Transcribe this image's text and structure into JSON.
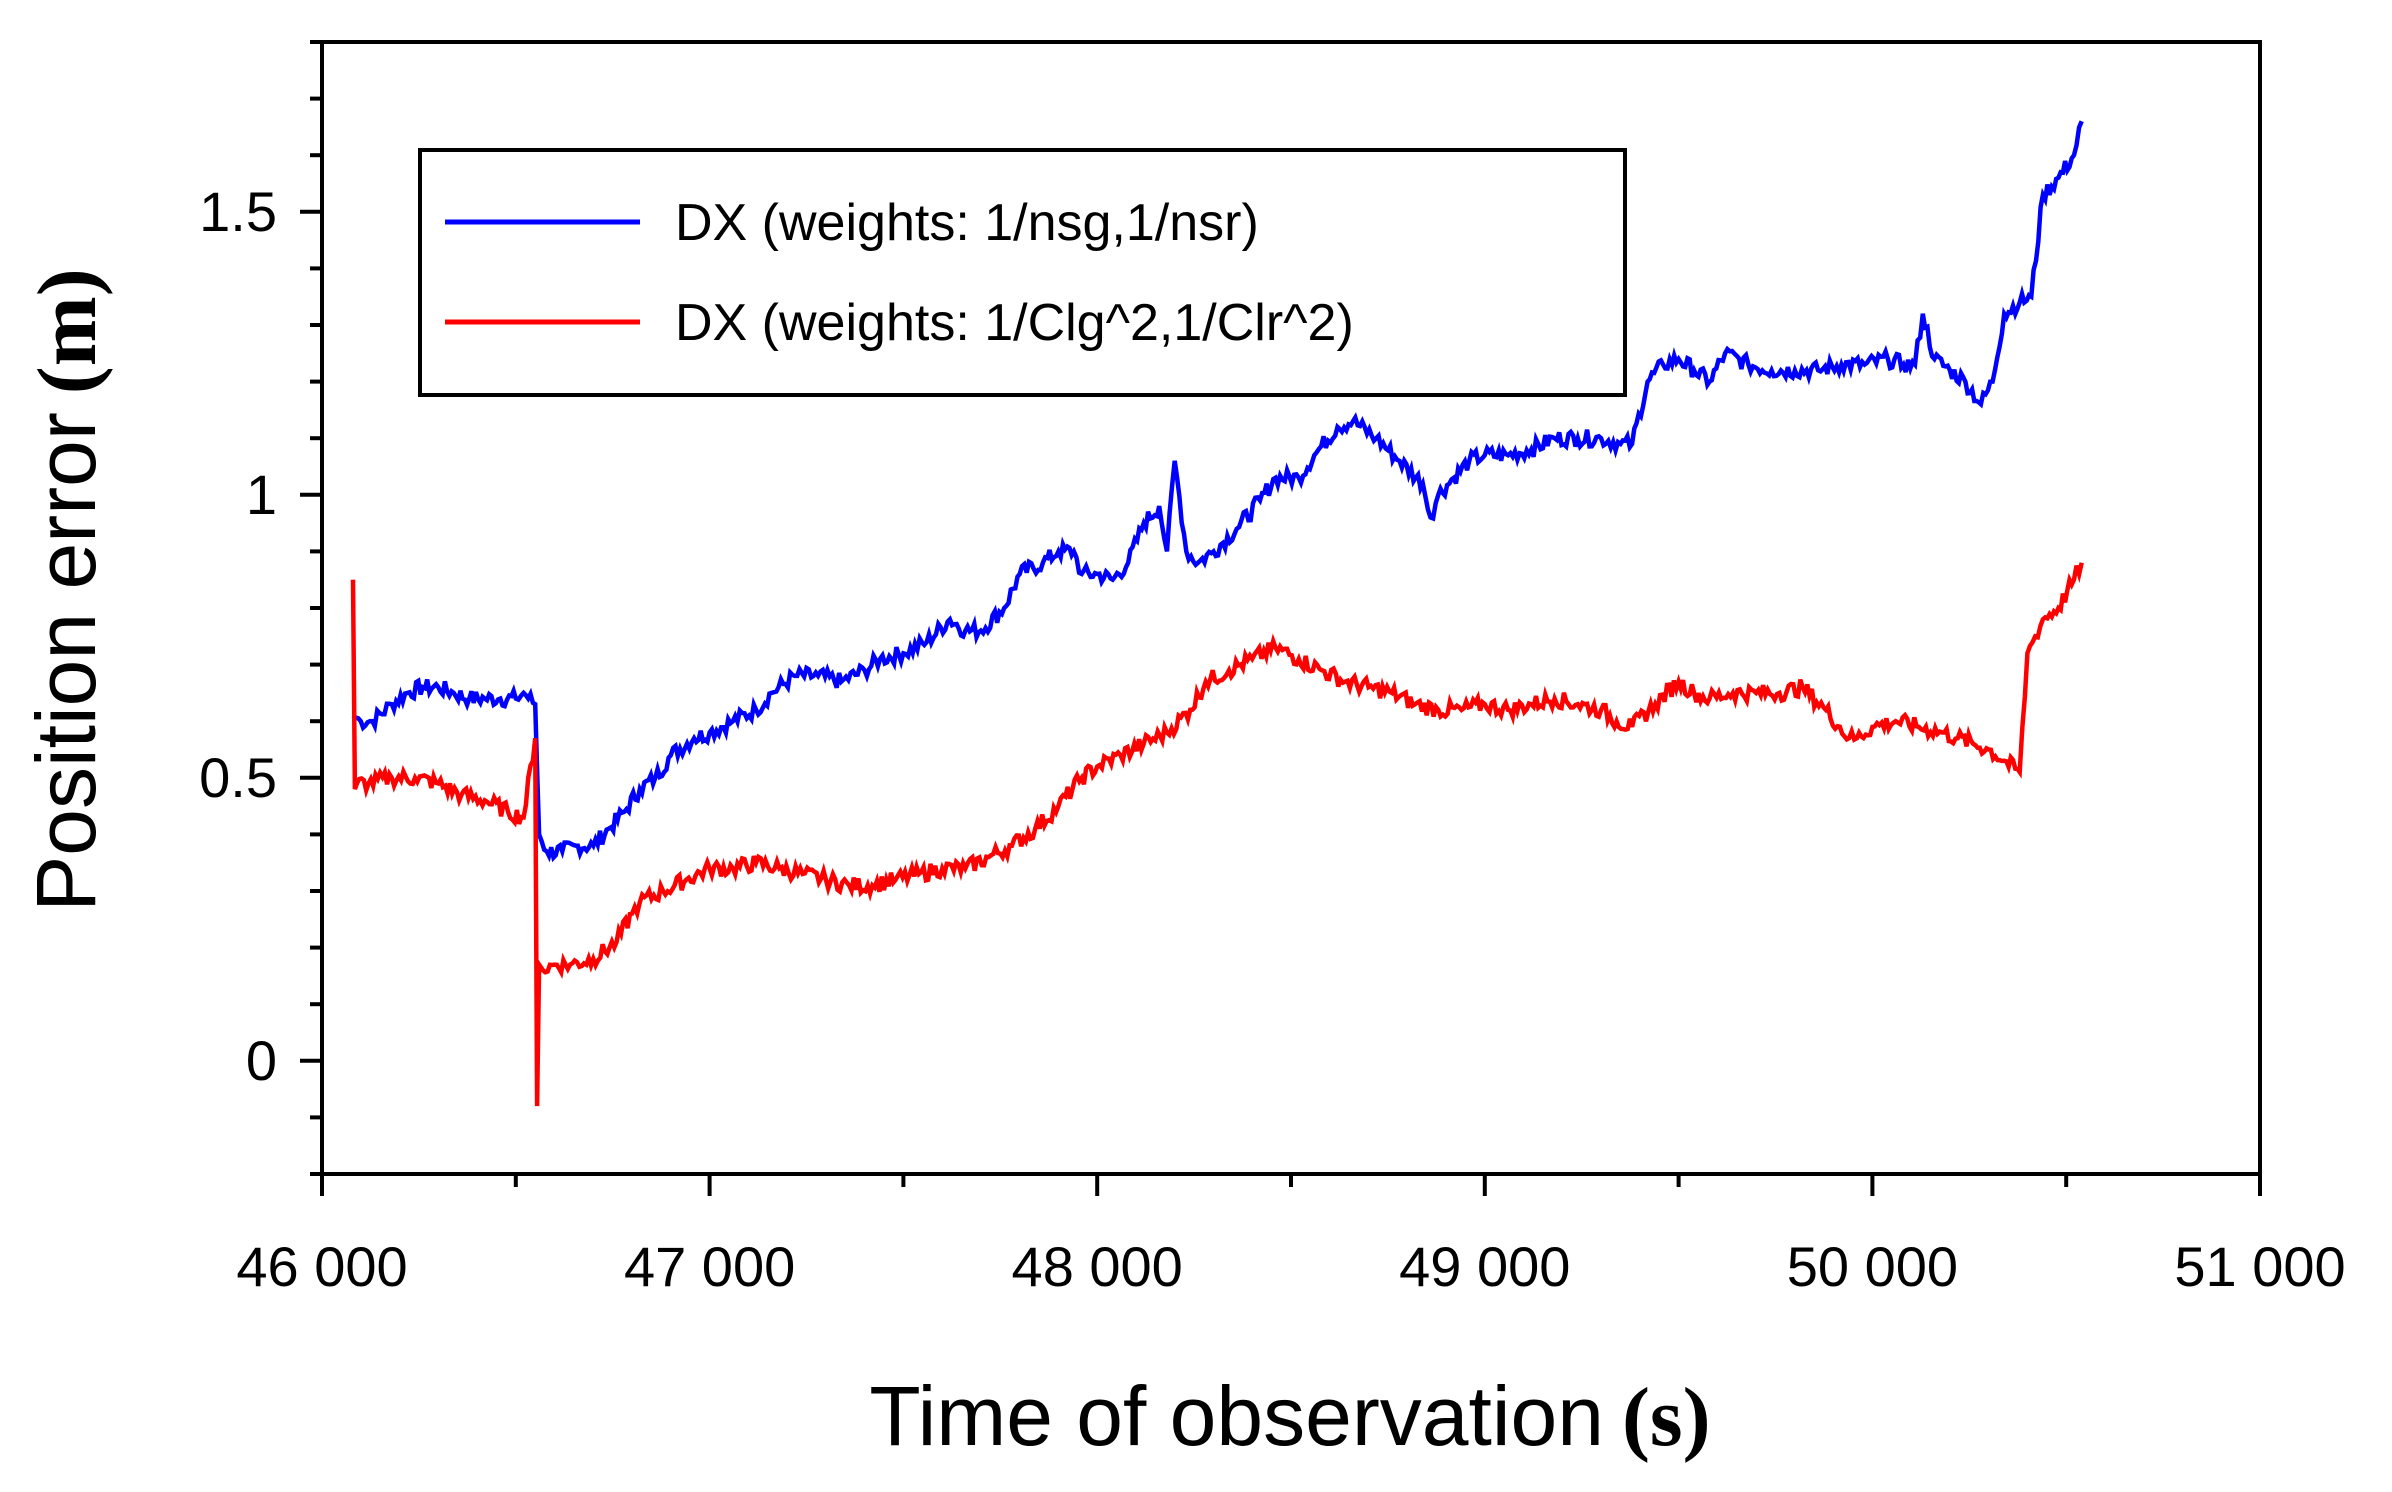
{
  "chart_data": {
    "type": "line",
    "title": "",
    "xlabel": "Time of observation",
    "xlabel_unit": "(s)",
    "ylabel": "Position error",
    "ylabel_unit": "(m)",
    "xlim": [
      46000,
      51000
    ],
    "ylim": [
      -0.2,
      1.8
    ],
    "x_ticks": [
      46000,
      47000,
      48000,
      49000,
      50000,
      51000
    ],
    "x_tick_labels": [
      "46 000",
      "47 000",
      "48 000",
      "49 000",
      "50 000",
      "51 000"
    ],
    "y_ticks": [
      0,
      0.5,
      1,
      1.5
    ],
    "y_tick_labels": [
      "0",
      "0.5",
      "1",
      "1.5"
    ],
    "legend_position": "top-left",
    "series": [
      {
        "name": "DX (weights: 1/nsg,1/nsr)",
        "color": "#0000ff",
        "x": [
          46080,
          46100,
          46130,
          46180,
          46220,
          46260,
          46300,
          46340,
          46380,
          46420,
          46460,
          46500,
          46520,
          46550,
          46560,
          46580,
          46620,
          46660,
          46700,
          46740,
          46780,
          46820,
          46860,
          46900,
          46960,
          47000,
          47060,
          47120,
          47160,
          47220,
          47280,
          47340,
          47400,
          47440,
          47500,
          47560,
          47620,
          47660,
          47700,
          47760,
          47800,
          47860,
          47900,
          47940,
          47960,
          48000,
          48040,
          48080,
          48120,
          48160,
          48180,
          48200,
          48230,
          48260,
          48300,
          48360,
          48420,
          48460,
          48520,
          48560,
          48620,
          48660,
          48720,
          48780,
          48840,
          48860,
          48880,
          48920,
          48960,
          49000,
          49060,
          49120,
          49180,
          49240,
          49300,
          49350,
          49380,
          49420,
          49460,
          49500,
          49540,
          49580,
          49620,
          49680,
          49740,
          49800,
          49860,
          49920,
          49980,
          50040,
          50080,
          50110,
          50130,
          50160,
          50200,
          50240,
          50280,
          50310,
          50340,
          50380,
          50410,
          50440,
          50480,
          50520,
          50540
        ],
        "y": [
          0.61,
          0.6,
          0.6,
          0.63,
          0.65,
          0.66,
          0.66,
          0.65,
          0.64,
          0.64,
          0.64,
          0.64,
          0.65,
          0.63,
          0.4,
          0.37,
          0.37,
          0.38,
          0.38,
          0.41,
          0.44,
          0.48,
          0.5,
          0.54,
          0.57,
          0.58,
          0.6,
          0.62,
          0.65,
          0.68,
          0.68,
          0.67,
          0.69,
          0.71,
          0.72,
          0.74,
          0.78,
          0.76,
          0.76,
          0.8,
          0.86,
          0.88,
          0.9,
          0.9,
          0.86,
          0.86,
          0.85,
          0.88,
          0.95,
          0.98,
          0.9,
          1.06,
          0.9,
          0.88,
          0.9,
          0.94,
          0.99,
          1.03,
          1.03,
          1.07,
          1.12,
          1.13,
          1.1,
          1.06,
          1.02,
          0.96,
          1.0,
          1.03,
          1.06,
          1.07,
          1.07,
          1.08,
          1.1,
          1.1,
          1.1,
          1.09,
          1.09,
          1.2,
          1.23,
          1.24,
          1.22,
          1.2,
          1.25,
          1.23,
          1.22,
          1.22,
          1.22,
          1.23,
          1.23,
          1.24,
          1.23,
          1.23,
          1.32,
          1.24,
          1.22,
          1.2,
          1.16,
          1.2,
          1.32,
          1.34,
          1.35,
          1.53,
          1.56,
          1.6,
          1.66
        ]
      },
      {
        "name": "DX (weights: 1/Clg^2,1/Clr^2)",
        "color": "#ff0000",
        "x": [
          46080,
          46085,
          46090,
          46120,
          46180,
          46240,
          46300,
          46360,
          46420,
          46480,
          46520,
          46550,
          46555,
          46560,
          46570,
          46600,
          46640,
          46700,
          46760,
          46800,
          46820,
          46880,
          46940,
          47000,
          47060,
          47120,
          47180,
          47240,
          47300,
          47360,
          47420,
          47480,
          47540,
          47600,
          47660,
          47720,
          47780,
          47840,
          47900,
          47960,
          48000,
          48060,
          48120,
          48180,
          48240,
          48280,
          48340,
          48400,
          48460,
          48520,
          48580,
          48640,
          48700,
          48760,
          48820,
          48880,
          48940,
          49000,
          49060,
          49120,
          49180,
          49240,
          49300,
          49340,
          49380,
          49440,
          49500,
          49540,
          49580,
          49640,
          49700,
          49760,
          49820,
          49880,
          49940,
          49960,
          50000,
          50060,
          50120,
          50180,
          50220,
          50260,
          50300,
          50340,
          50380,
          50400,
          50420,
          50440,
          50480,
          50520,
          50540
        ],
        "y": [
          0.85,
          0.48,
          0.49,
          0.49,
          0.5,
          0.5,
          0.49,
          0.47,
          0.46,
          0.44,
          0.43,
          0.57,
          -0.08,
          0.17,
          0.16,
          0.17,
          0.17,
          0.18,
          0.21,
          0.26,
          0.28,
          0.3,
          0.32,
          0.34,
          0.34,
          0.35,
          0.34,
          0.33,
          0.32,
          0.31,
          0.31,
          0.32,
          0.33,
          0.34,
          0.34,
          0.36,
          0.38,
          0.41,
          0.45,
          0.5,
          0.52,
          0.54,
          0.56,
          0.58,
          0.62,
          0.67,
          0.69,
          0.71,
          0.73,
          0.71,
          0.69,
          0.67,
          0.66,
          0.65,
          0.63,
          0.62,
          0.62,
          0.63,
          0.62,
          0.63,
          0.64,
          0.63,
          0.62,
          0.6,
          0.59,
          0.63,
          0.67,
          0.65,
          0.64,
          0.65,
          0.65,
          0.65,
          0.66,
          0.62,
          0.57,
          0.57,
          0.59,
          0.6,
          0.59,
          0.58,
          0.57,
          0.56,
          0.55,
          0.53,
          0.51,
          0.72,
          0.75,
          0.78,
          0.8,
          0.85,
          0.88
        ]
      }
    ]
  }
}
